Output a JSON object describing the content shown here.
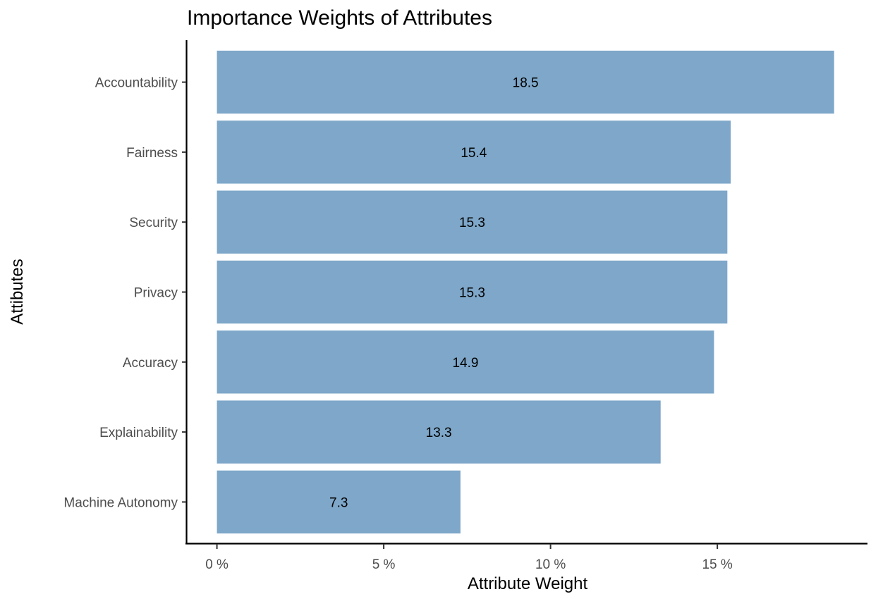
{
  "chart_data": {
    "type": "bar",
    "orientation": "horizontal",
    "title": "Importance Weights of Attributes",
    "xlabel": "Attribute Weight",
    "ylabel": "Attibutes",
    "categories": [
      "Accountability",
      "Fairness",
      "Security",
      "Privacy",
      "Accuracy",
      "Explainability",
      "Machine Autonomy"
    ],
    "values": [
      18.5,
      15.4,
      15.3,
      15.3,
      14.9,
      13.3,
      7.3
    ],
    "data_labels": [
      "18.5",
      "15.4",
      "15.3",
      "15.3",
      "14.9",
      "13.3",
      "7.3"
    ],
    "xlim": [
      -0.9,
      19.5
    ],
    "x_ticks": [
      0,
      5,
      10,
      15
    ],
    "x_tick_labels": [
      "0 %",
      "5 %",
      "10 %",
      "15 %"
    ],
    "bar_color": "#7ea7c9",
    "grid": false,
    "legend": "none"
  }
}
